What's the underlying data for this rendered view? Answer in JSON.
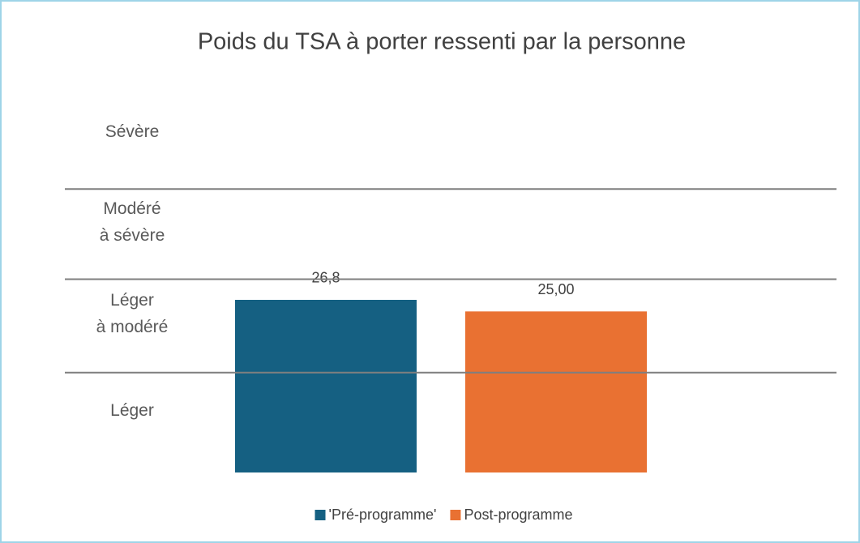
{
  "chart_data": {
    "type": "bar",
    "title": "Poids du TSA à porter ressenti par la personne",
    "categories": [
      null
    ],
    "series": [
      {
        "name": "'Pré-programme'",
        "color": "#156082",
        "values": [
          26.8
        ],
        "value_labels": [
          "26,8"
        ]
      },
      {
        "name": "Post-programme",
        "color": "#e97132",
        "values": [
          25
        ],
        "value_labels": [
          "25,00"
        ]
      }
    ],
    "ylim": [
      0,
      58
    ],
    "yticks": [
      15.5,
      30,
      44
    ],
    "bands": [
      [
        "Léger"
      ],
      [
        "Léger",
        "à modéré"
      ],
      [
        "Modéré",
        "à sévère"
      ],
      [
        "Sévère"
      ]
    ],
    "grid": true,
    "legend": "bottom"
  }
}
